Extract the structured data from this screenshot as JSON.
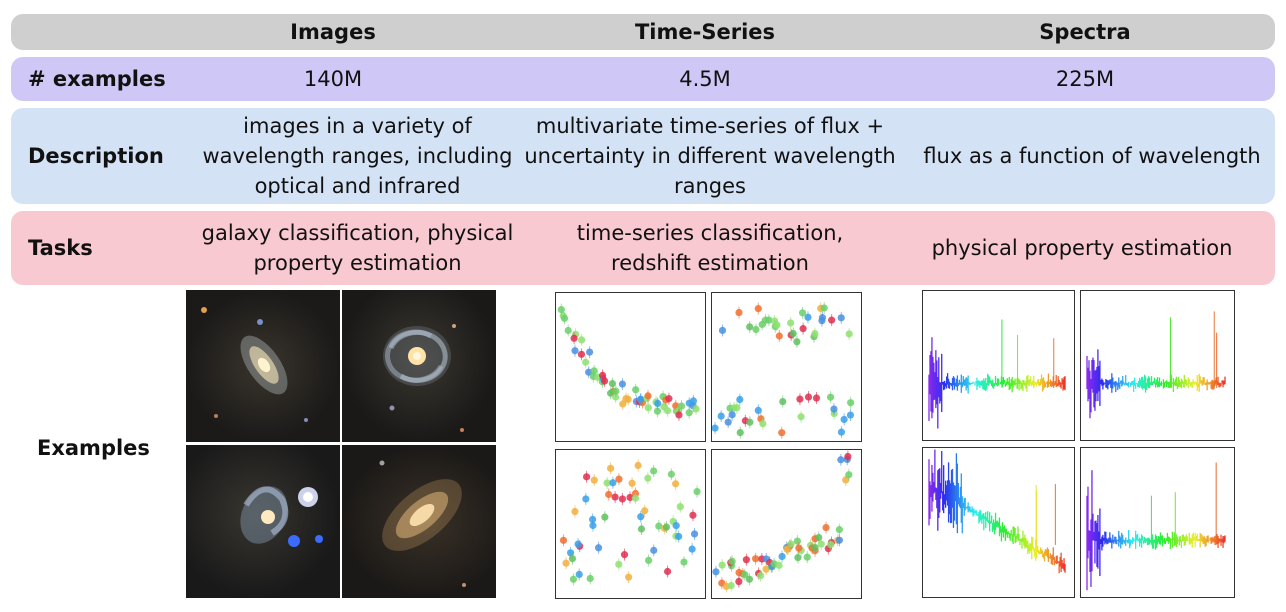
{
  "header": {
    "columns": [
      "Images",
      "Time-Series",
      "Spectra"
    ]
  },
  "rows": {
    "examples_count": {
      "label": "# examples",
      "values": [
        "140M",
        "4.5M",
        "225M"
      ]
    },
    "description": {
      "label": "Description",
      "values": [
        "images in a variety of wavelength ranges, including optical and infrared",
        "multivariate time-series of flux + uncertainty in different wavelength ranges",
        "flux as a function of wavelength"
      ]
    },
    "tasks": {
      "label": "Tasks",
      "values": [
        "galaxy classification, physical property estimation",
        "time-series classification, redshift estimation",
        "physical property estimation"
      ]
    },
    "examples": {
      "label": "Examples"
    }
  },
  "colors": {
    "header_band": "#cfcfcf",
    "count_band": "#cfc7f6",
    "description_band": "#d4e2f6",
    "tasks_band": "#f8c9d0"
  }
}
